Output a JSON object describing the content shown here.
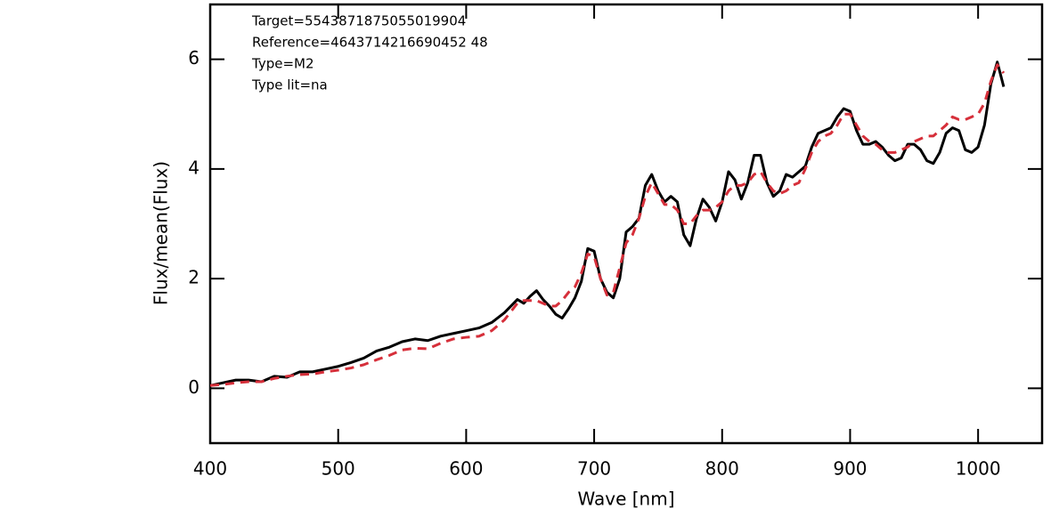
{
  "chart_data": {
    "type": "line",
    "annotations": [
      "Target=5543871875055019904",
      "Reference=4643714216690452 48",
      "Type=M2",
      "Type lit=na"
    ],
    "x_label": "Wave [nm]",
    "y_label": "Flux/mean(Flux)",
    "xlim": [
      400,
      1050
    ],
    "ylim": [
      -1,
      7
    ],
    "xticks": [
      400,
      500,
      600,
      700,
      800,
      900,
      1000
    ],
    "yticks": [
      0,
      2,
      4,
      6
    ],
    "x": [
      400,
      410,
      420,
      430,
      440,
      450,
      460,
      470,
      480,
      490,
      500,
      510,
      520,
      530,
      540,
      550,
      560,
      570,
      580,
      590,
      600,
      610,
      620,
      630,
      635,
      640,
      645,
      650,
      655,
      660,
      665,
      670,
      675,
      680,
      685,
      690,
      695,
      700,
      705,
      710,
      715,
      720,
      725,
      730,
      735,
      740,
      745,
      750,
      755,
      760,
      765,
      770,
      775,
      780,
      785,
      790,
      795,
      800,
      805,
      810,
      815,
      820,
      825,
      830,
      835,
      840,
      845,
      850,
      855,
      860,
      865,
      870,
      875,
      880,
      885,
      890,
      895,
      900,
      905,
      910,
      915,
      920,
      925,
      930,
      935,
      940,
      945,
      950,
      955,
      960,
      965,
      970,
      975,
      980,
      985,
      990,
      995,
      1000,
      1005,
      1010,
      1015,
      1020
    ],
    "series": [
      {
        "color": "#000000",
        "dash": "none",
        "values": [
          0.05,
          0.1,
          0.15,
          0.15,
          0.12,
          0.22,
          0.2,
          0.3,
          0.3,
          0.35,
          0.4,
          0.47,
          0.55,
          0.68,
          0.75,
          0.85,
          0.9,
          0.87,
          0.95,
          1.0,
          1.05,
          1.1,
          1.2,
          1.38,
          1.5,
          1.62,
          1.55,
          1.68,
          1.78,
          1.62,
          1.5,
          1.35,
          1.28,
          1.45,
          1.65,
          1.95,
          2.55,
          2.5,
          2.0,
          1.75,
          1.65,
          2.0,
          2.85,
          2.95,
          3.1,
          3.7,
          3.9,
          3.6,
          3.4,
          3.5,
          3.4,
          2.8,
          2.6,
          3.1,
          3.45,
          3.3,
          3.05,
          3.4,
          3.95,
          3.8,
          3.45,
          3.75,
          4.25,
          4.25,
          3.75,
          3.5,
          3.6,
          3.9,
          3.85,
          3.95,
          4.05,
          4.4,
          4.65,
          4.7,
          4.75,
          4.95,
          5.1,
          5.05,
          4.7,
          4.45,
          4.45,
          4.5,
          4.4,
          4.25,
          4.15,
          4.2,
          4.45,
          4.45,
          4.35,
          4.15,
          4.1,
          4.3,
          4.65,
          4.75,
          4.7,
          4.35,
          4.3,
          4.4,
          4.8,
          5.55,
          5.95,
          5.5
        ]
      },
      {
        "color": "#d62f3a",
        "dash": "10 7",
        "values": [
          0.05,
          0.07,
          0.1,
          0.12,
          0.12,
          0.18,
          0.22,
          0.25,
          0.26,
          0.3,
          0.33,
          0.37,
          0.43,
          0.52,
          0.6,
          0.7,
          0.73,
          0.72,
          0.82,
          0.9,
          0.93,
          0.95,
          1.05,
          1.25,
          1.4,
          1.55,
          1.6,
          1.6,
          1.6,
          1.55,
          1.5,
          1.5,
          1.6,
          1.75,
          1.85,
          2.1,
          2.45,
          2.4,
          2.0,
          1.7,
          1.75,
          2.2,
          2.65,
          2.8,
          3.1,
          3.5,
          3.75,
          3.55,
          3.35,
          3.35,
          3.25,
          3.0,
          3.0,
          3.15,
          3.25,
          3.25,
          3.3,
          3.4,
          3.6,
          3.7,
          3.7,
          3.75,
          3.9,
          3.95,
          3.75,
          3.6,
          3.55,
          3.6,
          3.7,
          3.75,
          4.0,
          4.3,
          4.5,
          4.6,
          4.65,
          4.8,
          5.0,
          5.0,
          4.8,
          4.6,
          4.5,
          4.45,
          4.35,
          4.3,
          4.3,
          4.35,
          4.4,
          4.5,
          4.55,
          4.6,
          4.6,
          4.7,
          4.8,
          4.95,
          4.9,
          4.9,
          4.95,
          5.0,
          5.2,
          5.6,
          5.9,
          5.75
        ]
      }
    ]
  }
}
